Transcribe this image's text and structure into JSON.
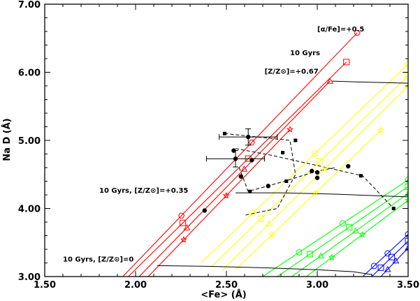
{
  "chart_data": {
    "type": "line",
    "title": "",
    "xlabel": "<Fe> (Å)",
    "ylabel": "Na D (Å)",
    "xlim": [
      1.5,
      3.5
    ],
    "ylim": [
      3.0,
      7.0
    ],
    "x_ticks": [
      "1.50",
      "2.00",
      "2.50",
      "3.00",
      "3.50"
    ],
    "x_tick_values": [
      1.5,
      2.0,
      2.5,
      3.0,
      3.5
    ],
    "y_ticks": [
      "3.00",
      "4.00",
      "5.00",
      "6.00",
      "7.00"
    ],
    "y_tick_values": [
      3.0,
      4.0,
      5.0,
      6.0,
      7.0
    ],
    "annotations": [
      {
        "id": "alpha-fe",
        "text": "[α/Fe]=+0.5",
        "at": [
          3.0,
          6.6
        ]
      },
      {
        "id": "age-high",
        "text": "10 Gyrs",
        "at": [
          2.85,
          6.25
        ]
      },
      {
        "id": "z-high",
        "text": "[Z/Z⊙]=+0.67",
        "at": [
          2.71,
          5.98
        ]
      },
      {
        "id": "z-mid",
        "text": "10 Gyrs, [Z/Z⊙]=+0.35",
        "at": [
          1.8,
          4.23
        ]
      },
      {
        "id": "z-solar",
        "text": "10 Gyrs, [Z/Z⊙]=0",
        "at": [
          1.6,
          3.22
        ]
      }
    ],
    "series": [
      {
        "color": "#ff0000",
        "marker": "hexagon",
        "x": [
          1.93,
          3.22
        ],
        "y": [
          3.0,
          6.58
        ]
      },
      {
        "color": "#ff0000",
        "marker": "square",
        "x": [
          1.96,
          3.16
        ],
        "y": [
          3.0,
          6.15
        ]
      },
      {
        "color": "#ff0000",
        "marker": "triangle",
        "x": [
          2.02,
          3.07
        ],
        "y": [
          3.0,
          5.87
        ]
      },
      {
        "color": "#ff0000",
        "marker": "star",
        "x": [
          2.07,
          2.85
        ],
        "y": [
          3.0,
          5.16
        ]
      },
      {
        "color": "#ffff00",
        "marker": "circle",
        "x": [
          2.36,
          3.5
        ],
        "y": [
          3.2,
          6.12
        ]
      },
      {
        "color": "#ffff00",
        "marker": "square",
        "x": [
          2.42,
          3.5
        ],
        "y": [
          3.15,
          5.95
        ]
      },
      {
        "color": "#ffff00",
        "marker": "triangle",
        "x": [
          2.48,
          3.5
        ],
        "y": [
          3.1,
          5.8
        ]
      },
      {
        "color": "#ffff00",
        "marker": "star",
        "x": [
          2.55,
          3.35
        ],
        "y": [
          3.1,
          5.15
        ]
      },
      {
        "color": "#00ff00",
        "marker": "circle",
        "x": [
          2.7,
          3.5
        ],
        "y": [
          3.0,
          4.42
        ]
      },
      {
        "color": "#00ff00",
        "marker": "square",
        "x": [
          2.78,
          3.5
        ],
        "y": [
          3.0,
          4.32
        ]
      },
      {
        "color": "#00ff00",
        "marker": "triangle",
        "x": [
          2.86,
          3.5
        ],
        "y": [
          3.0,
          4.22
        ]
      },
      {
        "color": "#00ff00",
        "marker": "star",
        "x": [
          2.94,
          3.5
        ],
        "y": [
          3.0,
          4.12
        ]
      },
      {
        "color": "#0000ff",
        "marker": "circle",
        "x": [
          3.25,
          3.5
        ],
        "y": [
          3.0,
          3.62
        ]
      },
      {
        "color": "#0000ff",
        "marker": "square",
        "x": [
          3.3,
          3.5
        ],
        "y": [
          3.0,
          3.52
        ]
      },
      {
        "color": "#0000ff",
        "marker": "triangle",
        "x": [
          3.35,
          3.5
        ],
        "y": [
          3.0,
          3.42
        ]
      }
    ],
    "black_curves": [
      {
        "x": [
          3.08,
          3.2,
          3.35,
          3.5
        ],
        "y": [
          5.87,
          5.86,
          5.85,
          5.84
        ]
      },
      {
        "x": [
          2.55,
          2.8,
          3.1,
          3.3,
          3.5
        ],
        "y": [
          4.23,
          4.23,
          4.21,
          4.19,
          4.17
        ]
      },
      {
        "x": [
          2.12,
          2.4,
          2.7,
          3.0,
          3.2,
          3.3
        ],
        "y": [
          3.16,
          3.15,
          3.13,
          3.1,
          3.07,
          3.03
        ]
      }
    ],
    "dashed_curves": [
      {
        "x": [
          2.49,
          2.85,
          2.88,
          2.78,
          2.6
        ],
        "y": [
          5.1,
          5.0,
          4.5,
          4.0,
          3.9
        ]
      },
      {
        "x": [
          2.55,
          2.75,
          3.05,
          3.25,
          3.42
        ],
        "y": [
          4.88,
          4.78,
          4.6,
          4.48,
          4.0
        ]
      },
      {
        "x": [
          2.57,
          2.62,
          2.82,
          3.0,
          3.1
        ],
        "y": [
          4.6,
          4.25,
          4.4,
          4.55,
          4.6
        ]
      }
    ],
    "black_points_small": [
      {
        "x": 2.49,
        "y": 5.1
      },
      {
        "x": 2.81,
        "y": 4.82
      },
      {
        "x": 2.88,
        "y": 5.0
      },
      {
        "x": 2.63,
        "y": 4.25
      },
      {
        "x": 2.83,
        "y": 4.4
      },
      {
        "x": 3.24,
        "y": 4.48
      },
      {
        "x": 3.42,
        "y": 4.0
      }
    ],
    "black_points_large": [
      {
        "x": 2.38,
        "y": 3.97
      },
      {
        "x": 2.54,
        "y": 4.85
      },
      {
        "x": 2.55,
        "y": 4.73
      },
      {
        "x": 2.58,
        "y": 4.47
      },
      {
        "x": 2.64,
        "y": 4.71
      },
      {
        "x": 2.73,
        "y": 4.33
      },
      {
        "x": 2.97,
        "y": 4.55
      },
      {
        "x": 3.0,
        "y": 4.53
      },
      {
        "x": 3.0,
        "y": 4.45
      },
      {
        "x": 3.17,
        "y": 4.62
      },
      {
        "x": 2.62,
        "y": 5.05
      }
    ],
    "error_bars": [
      {
        "x": 2.62,
        "y": 5.05,
        "xerr": 0.16,
        "yerr": 0.12
      },
      {
        "x": 2.55,
        "y": 4.73,
        "xerr": 0.16,
        "yerr": 0.12
      }
    ]
  }
}
